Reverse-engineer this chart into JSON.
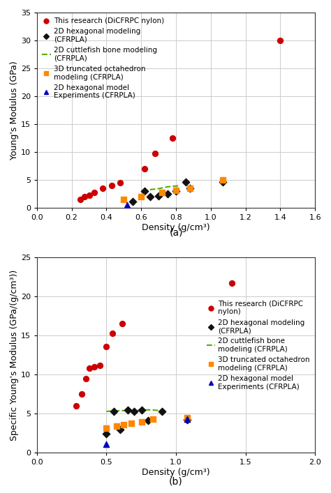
{
  "plot_a": {
    "title_label": "(a)",
    "xlabel": "Density (g/cm³)",
    "ylabel": "Young's Modulus (GPa)",
    "xlim": [
      0,
      1.6
    ],
    "ylim": [
      0,
      35
    ],
    "xticks": [
      0,
      0.2,
      0.4,
      0.6,
      0.8,
      1.0,
      1.2,
      1.4,
      1.6
    ],
    "yticks": [
      0,
      5,
      10,
      15,
      20,
      25,
      30,
      35
    ],
    "red_circles": {
      "x": [
        0.25,
        0.275,
        0.3,
        0.33,
        0.38,
        0.43,
        0.48,
        0.62,
        0.68,
        0.78,
        1.4
      ],
      "y": [
        1.5,
        2.0,
        2.3,
        2.8,
        3.5,
        4.0,
        4.5,
        7.0,
        9.8,
        12.5,
        30.0
      ],
      "color": "#cc0000",
      "marker": "o",
      "size": 32,
      "label": "This research (DiCFRPC nylon)"
    },
    "black_diamonds": {
      "x": [
        0.55,
        0.62,
        0.65,
        0.7,
        0.75,
        0.8,
        0.855,
        0.88,
        1.07
      ],
      "y": [
        1.2,
        3.1,
        2.0,
        2.2,
        2.5,
        3.0,
        4.7,
        3.6,
        4.7
      ],
      "color": "#111111",
      "marker": "D",
      "size": 28,
      "label": "2D hexagonal modeling\n(CFRPLA)"
    },
    "green_dashes": {
      "x": [
        0.65,
        0.705,
        0.75,
        0.82
      ],
      "y": [
        3.3,
        3.5,
        3.8,
        4.0
      ],
      "color": "#55aa00",
      "linestyle": "--",
      "linewidth": 1.5,
      "label": "2D cuttlefish bone modeling\n(CFRPLA)"
    },
    "orange_squares": {
      "x": [
        0.5,
        0.6,
        0.72,
        0.8,
        0.88,
        1.07
      ],
      "y": [
        1.5,
        2.0,
        2.8,
        3.2,
        3.5,
        5.0
      ],
      "color": "#ff8800",
      "marker": "s",
      "size": 28,
      "label": "3D truncated octahedron\nmodeling (CFRPLA)"
    },
    "blue_triangles": {
      "x": [
        0.52
      ],
      "y": [
        0.5
      ],
      "color": "#0000bb",
      "marker": "^",
      "size": 35,
      "label": "2D hexagonal model\nExperiments (CFRPLA)"
    }
  },
  "plot_b": {
    "title_label": "(b)",
    "xlabel": "Density (g/cm³)",
    "ylabel": "Specific Young's Modulus (GPa/(g/cm³))",
    "xlim": [
      0,
      2.0
    ],
    "ylim": [
      0,
      25
    ],
    "xticks": [
      0,
      0.5,
      1.0,
      1.5,
      2.0
    ],
    "yticks": [
      0,
      5,
      10,
      15,
      20,
      25
    ],
    "red_circles": {
      "x": [
        0.28,
        0.32,
        0.35,
        0.375,
        0.415,
        0.455,
        0.5,
        0.545,
        0.615,
        1.4
      ],
      "y": [
        6.0,
        7.5,
        9.5,
        10.8,
        11.0,
        11.2,
        13.6,
        15.3,
        16.5,
        21.7
      ],
      "color": "#cc0000",
      "marker": "o",
      "size": 32,
      "label": "This research (DiCFRPC\nnylon)"
    },
    "black_diamonds": {
      "x": [
        0.5,
        0.555,
        0.6,
        0.655,
        0.7,
        0.755,
        0.8,
        0.9,
        1.08
      ],
      "y": [
        2.4,
        5.3,
        3.0,
        5.5,
        5.3,
        5.5,
        4.1,
        5.3,
        4.2
      ],
      "color": "#111111",
      "marker": "D",
      "size": 28,
      "label": "2D hexagonal modeling\n(CFRPLA)"
    },
    "green_dashes": {
      "x": [
        0.5,
        0.6,
        0.7,
        0.8,
        0.9
      ],
      "y": [
        5.3,
        5.4,
        5.4,
        5.5,
        5.4
      ],
      "color": "#55aa00",
      "linestyle": "--",
      "linewidth": 1.5,
      "label": "2D cuttlefish bone\nmodeling (CFRPLA)"
    },
    "orange_squares": {
      "x": [
        0.5,
        0.575,
        0.625,
        0.68,
        0.755,
        0.835,
        1.08
      ],
      "y": [
        3.2,
        3.4,
        3.6,
        3.8,
        4.0,
        4.3,
        4.5
      ],
      "color": "#ff8800",
      "marker": "s",
      "size": 28,
      "label": "3D truncated octahedron\nmodeling (CFRPLA)"
    },
    "blue_triangles": {
      "x": [
        0.5,
        1.08
      ],
      "y": [
        1.1,
        4.3
      ],
      "color": "#0000bb",
      "marker": "^",
      "size": 35,
      "label": "2D hexagonal model\nExperiments (CFRPLA)"
    }
  },
  "background_color": "#ffffff",
  "grid_color": "#cccccc",
  "font_size_label": 9,
  "font_size_tick": 8,
  "font_size_legend": 7.5,
  "font_size_caption": 10
}
